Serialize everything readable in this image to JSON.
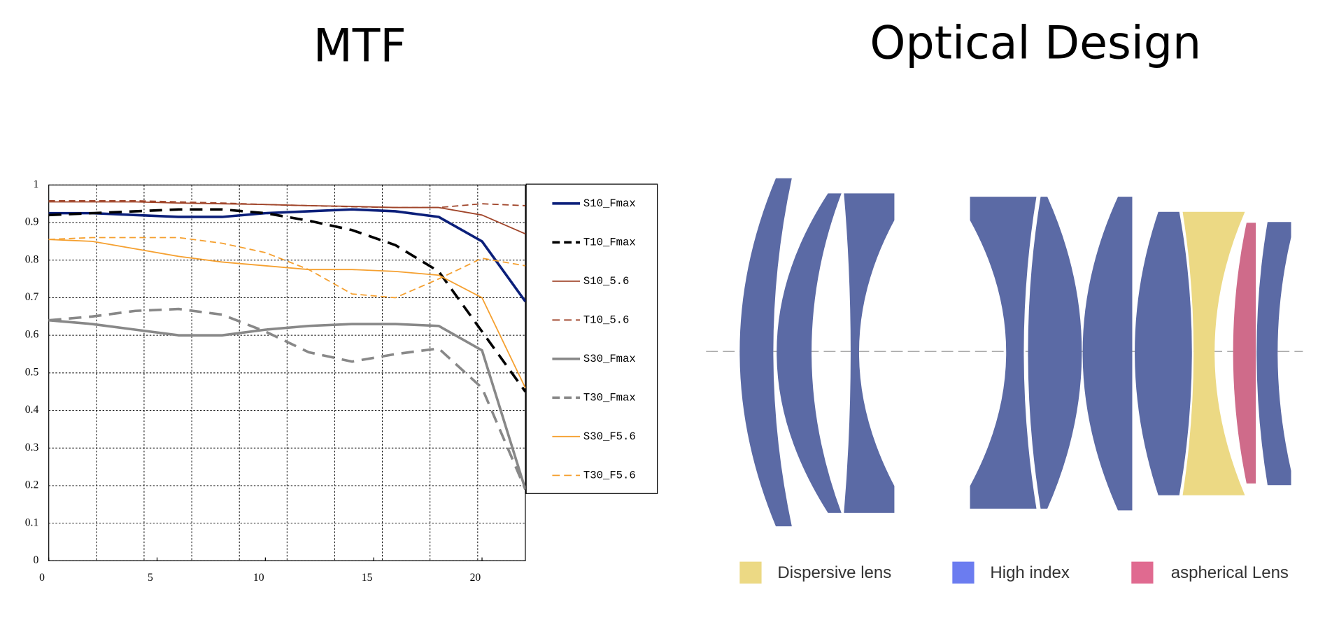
{
  "chart_data": {
    "type": "line",
    "title": "MTF",
    "x": [
      0,
      2,
      4,
      6,
      8,
      10,
      12,
      14,
      16,
      18,
      20,
      22
    ],
    "xlim": [
      0,
      22
    ],
    "xticks": [
      0,
      5,
      10,
      15,
      20
    ],
    "xgrid": [
      2.2,
      4.4,
      6.6,
      8.8,
      11,
      13.2,
      15.4,
      17.6,
      19.8
    ],
    "ylim": [
      0,
      1
    ],
    "yticks": [
      0,
      0.1,
      0.2,
      0.3,
      0.4,
      0.5,
      0.6,
      0.7,
      0.8,
      0.9,
      1
    ],
    "grid": true,
    "legend": "right",
    "series": [
      {
        "name": "S10_Fmax",
        "color": "#0b1f7a",
        "dashed": false,
        "width": 3,
        "values": [
          0.925,
          0.925,
          0.92,
          0.915,
          0.915,
          0.925,
          0.93,
          0.935,
          0.93,
          0.915,
          0.85,
          0.69
        ]
      },
      {
        "name": "T10_Fmax",
        "color": "#000000",
        "dashed": true,
        "width": 3,
        "values": [
          0.92,
          0.925,
          0.93,
          0.935,
          0.935,
          0.925,
          0.905,
          0.88,
          0.84,
          0.77,
          0.61,
          0.45
        ]
      },
      {
        "name": "S10_5.6",
        "color": "#a0452a",
        "dashed": false,
        "width": 1.5,
        "values": [
          0.955,
          0.955,
          0.955,
          0.952,
          0.95,
          0.948,
          0.945,
          0.943,
          0.94,
          0.94,
          0.92,
          0.87
        ]
      },
      {
        "name": "T10_5.6",
        "color": "#a0452a",
        "dashed": true,
        "width": 1.5,
        "values": [
          0.958,
          0.958,
          0.958,
          0.955,
          0.952,
          0.948,
          0.945,
          0.942,
          0.94,
          0.94,
          0.95,
          0.945
        ]
      },
      {
        "name": "S30_Fmax",
        "color": "#888888",
        "dashed": false,
        "width": 3,
        "values": [
          0.64,
          0.63,
          0.615,
          0.6,
          0.6,
          0.615,
          0.625,
          0.63,
          0.63,
          0.625,
          0.56,
          0.19
        ]
      },
      {
        "name": "T30_Fmax",
        "color": "#888888",
        "dashed": true,
        "width": 3,
        "values": [
          0.64,
          0.65,
          0.665,
          0.67,
          0.655,
          0.61,
          0.555,
          0.53,
          0.55,
          0.565,
          0.46,
          0.19
        ]
      },
      {
        "name": "S30_F5.6",
        "color": "#f5a030",
        "dashed": false,
        "width": 1.5,
        "values": [
          0.855,
          0.85,
          0.83,
          0.81,
          0.795,
          0.785,
          0.775,
          0.775,
          0.77,
          0.76,
          0.7,
          0.46
        ]
      },
      {
        "name": "T30_F5.6",
        "color": "#f5a030",
        "dashed": true,
        "width": 1.5,
        "values": [
          0.855,
          0.86,
          0.86,
          0.86,
          0.845,
          0.82,
          0.775,
          0.71,
          0.7,
          0.75,
          0.805,
          0.785
        ]
      }
    ]
  },
  "optical_design": {
    "title": "Optical Design",
    "legend": [
      {
        "label": "Dispersive lens",
        "color": "#ecd984"
      },
      {
        "label": "High index",
        "color": "#6b7cf0"
      },
      {
        "label": "aspherical Lens",
        "color": "#e06a90"
      }
    ]
  }
}
